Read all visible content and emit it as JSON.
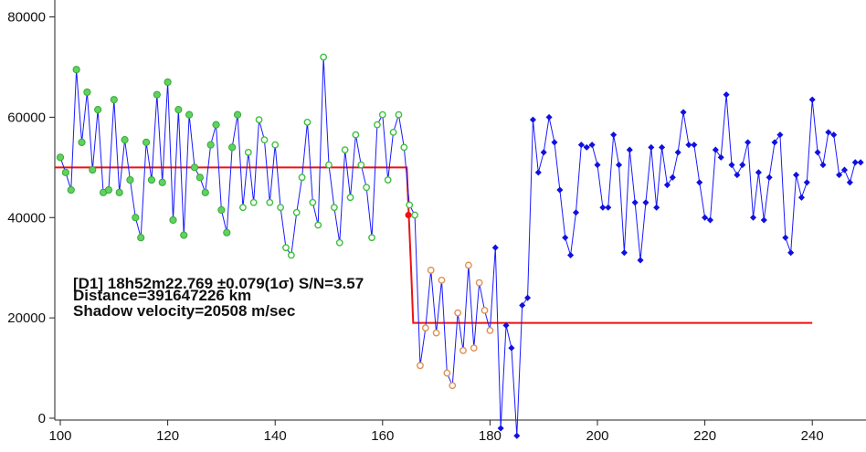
{
  "chart_data": {
    "type": "line",
    "title": "",
    "xlabel": "",
    "ylabel": "",
    "xlim": [
      99,
      248
    ],
    "ylim": [
      0,
      80000
    ],
    "x_ticks": [
      100,
      120,
      140,
      160,
      180,
      200,
      220,
      240
    ],
    "y_ticks": [
      0,
      20000,
      40000,
      60000,
      80000
    ],
    "annotations": [
      "[D1] 18h52m22.769 ±0.079(1σ) S/N=3.57",
      "Distance=391647226 km",
      "Shadow velocity=20508 m/sec"
    ],
    "observations": {
      "x_start": 100,
      "x_step": 1,
      "y": [
        52000,
        49000,
        45500,
        69500,
        55000,
        65000,
        49500,
        61500,
        45000,
        45500,
        63500,
        45000,
        55500,
        47500,
        40000,
        36000,
        55000,
        47500,
        64500,
        47000,
        67000,
        39500,
        61500,
        36500,
        60500,
        50000,
        48000,
        45000,
        54500,
        58500,
        41500,
        37000,
        54000,
        60500,
        42000,
        53000,
        43000,
        59500,
        55500,
        43000,
        54500,
        42000,
        34000,
        32500,
        41000,
        48000,
        59000,
        43000,
        38500,
        72000,
        50500,
        42000,
        35000,
        53500,
        44000,
        56500,
        50500,
        46000,
        36000,
        58500,
        60500,
        47500,
        57000,
        60500,
        54000,
        42500,
        40500,
        10500,
        18000,
        29500,
        17000,
        27500,
        9000,
        6500,
        21000,
        13500,
        30500,
        14000,
        27000,
        21500,
        17500,
        34000,
        -2000,
        18500,
        14000,
        -3500,
        22500,
        24000,
        59500,
        49000,
        53000,
        60000,
        55000,
        45500,
        36000,
        32500,
        41000,
        54500,
        54000,
        54500,
        50500,
        42000,
        42000,
        56500,
        50500,
        33000,
        53500,
        43000,
        31500,
        43000,
        54000,
        42000,
        54000,
        46500,
        48000,
        53000,
        61000,
        54500,
        54500,
        47000,
        40000,
        39500,
        53500,
        52000,
        64500,
        50500,
        48500,
        50500,
        55000,
        40000,
        49000,
        39500,
        48000,
        55000,
        56500,
        36000,
        33000,
        48500,
        44000,
        47000,
        63500,
        53000,
        50500,
        57000,
        56500,
        48500,
        49500,
        47000,
        51000,
        51000
      ],
      "markers": {
        "green_filled_count": 34,
        "green_open_start_index": 34,
        "orange_start_index": 67,
        "orange_end_index": 80
      },
      "line_color": "#1a1aff",
      "point_color": "#1010e0",
      "green_filled_color": "#5fd35f",
      "green_open_color": "#3cbf3c",
      "orange_color": "#e09050"
    },
    "model": {
      "name": "",
      "color": "#ee1111",
      "x": [
        99,
        164.5,
        164.9,
        165.3,
        165.7,
        240
      ],
      "y": [
        50000,
        50000,
        40000,
        30000,
        19000,
        19000
      ],
      "event_point": {
        "x": 164.8,
        "y": 40500
      }
    }
  }
}
